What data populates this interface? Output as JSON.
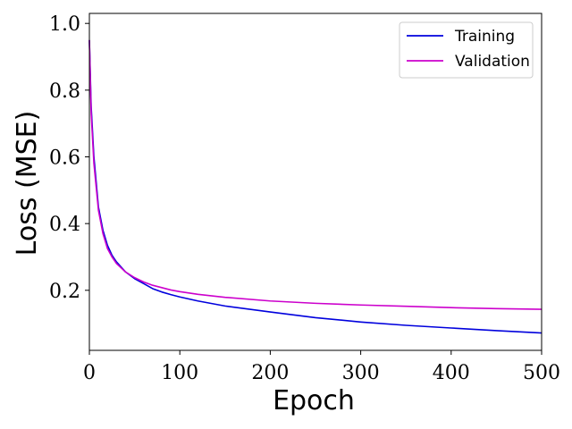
{
  "chart_data": {
    "type": "line",
    "title": "",
    "xlabel": "Epoch",
    "ylabel": "Loss (MSE)",
    "xlim": [
      0,
      500
    ],
    "ylim": [
      0.02,
      1.03
    ],
    "xticks": [
      0,
      100,
      200,
      300,
      400,
      500
    ],
    "xtick_labels": [
      "0",
      "100",
      "200",
      "300",
      "400",
      "500"
    ],
    "yticks": [
      0.2,
      0.4,
      0.6,
      0.8,
      1.0
    ],
    "ytick_labels": [
      "0.2",
      "0.4",
      "0.6",
      "0.8",
      "1.0"
    ],
    "grid": false,
    "legend_position": "top-right",
    "series": [
      {
        "name": "Training",
        "color": "#0000dd",
        "x": [
          0,
          2,
          5,
          10,
          15,
          20,
          25,
          30,
          40,
          50,
          60,
          70,
          80,
          90,
          100,
          120,
          150,
          200,
          250,
          300,
          350,
          400,
          450,
          500
        ],
        "y": [
          0.95,
          0.75,
          0.6,
          0.45,
          0.38,
          0.335,
          0.305,
          0.285,
          0.255,
          0.235,
          0.22,
          0.205,
          0.195,
          0.187,
          0.18,
          0.168,
          0.153,
          0.135,
          0.118,
          0.105,
          0.095,
          0.087,
          0.079,
          0.072
        ]
      },
      {
        "name": "Validation",
        "color": "#cc00cc",
        "x": [
          0,
          2,
          5,
          10,
          15,
          20,
          25,
          30,
          40,
          50,
          60,
          70,
          80,
          90,
          100,
          120,
          150,
          200,
          250,
          300,
          350,
          400,
          450,
          500
        ],
        "y": [
          0.95,
          0.73,
          0.58,
          0.44,
          0.37,
          0.325,
          0.3,
          0.28,
          0.255,
          0.238,
          0.225,
          0.215,
          0.208,
          0.201,
          0.196,
          0.188,
          0.179,
          0.168,
          0.161,
          0.156,
          0.152,
          0.148,
          0.145,
          0.143
        ]
      }
    ]
  }
}
